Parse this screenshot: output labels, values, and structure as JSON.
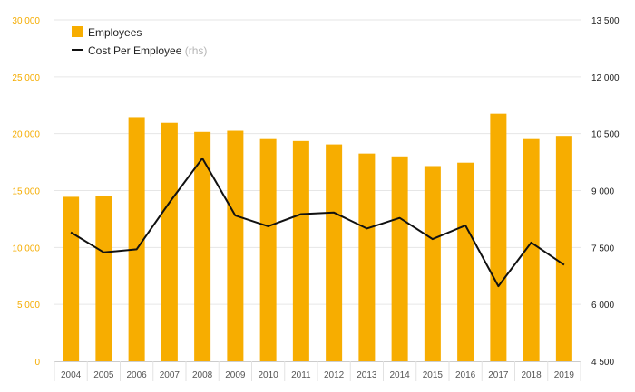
{
  "chart_data": {
    "type": "bar",
    "categories": [
      "2004",
      "2005",
      "2006",
      "2007",
      "2008",
      "2009",
      "2010",
      "2011",
      "2012",
      "2013",
      "2014",
      "2015",
      "2016",
      "2017",
      "2018",
      "2019"
    ],
    "series": [
      {
        "name": "Employees",
        "type": "bar",
        "axis": "left",
        "color": "#f7ad00",
        "values": [
          14450,
          14550,
          21450,
          20950,
          20150,
          20250,
          19600,
          19350,
          19050,
          18250,
          18000,
          17150,
          17450,
          21750,
          19600,
          19800
        ]
      },
      {
        "name": "Cost Per Employee",
        "name_note": "(rhs)",
        "type": "line",
        "axis": "right",
        "color": "#111111",
        "values": [
          7900,
          7370,
          7450,
          8690,
          9850,
          8340,
          8060,
          8380,
          8420,
          8000,
          8280,
          7720,
          8080,
          6480,
          7630,
          7040
        ]
      }
    ],
    "y_left": {
      "ylim": [
        0,
        30000
      ],
      "ticks": [
        0,
        5000,
        10000,
        15000,
        20000,
        25000,
        30000
      ],
      "tick_labels": [
        "0",
        "5 000",
        "10 000",
        "15 000",
        "20 000",
        "25 000",
        "30 000"
      ],
      "color": "#f5ac00"
    },
    "y_right": {
      "ylim": [
        4500,
        13500
      ],
      "ticks": [
        4500,
        6000,
        7500,
        9000,
        10500,
        12000,
        13500
      ],
      "tick_labels": [
        "4 500",
        "6 000",
        "7 500",
        "9 000",
        "10 500",
        "12 000",
        "13 500"
      ],
      "color": "#222222"
    },
    "title": "",
    "xlabel": "",
    "ylabel": "",
    "grid": true,
    "legend_position": "top-left"
  }
}
